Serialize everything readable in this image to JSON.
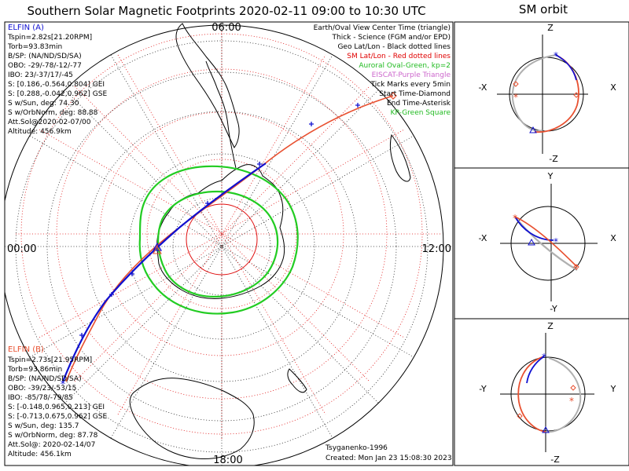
{
  "title": "Southern Solar Magnetic Footprints 2020-02-11 09:00 to 10:30 UTC",
  "orbit_title": "SM orbit",
  "clock_labels": {
    "top": "06:00",
    "left": "00:00",
    "right": "12:00",
    "bottom": "18:00"
  },
  "elfin_a": {
    "name": "ELFIN (A)",
    "color": "#1010d0",
    "lines": [
      "Tspin=2.82s[21.20RPM]",
      "Torb=93.83min",
      "B/SP: (NA/ND/SD/SA)",
      "OBO: -29/-78/-12/-77",
      "IBO: 23/-37/17/-45",
      "S: [0.186,-0.564,0.804] GEI",
      "S: [0.288,-0.042,0.962] GSE",
      "S w/Sun, deg: 74.30",
      "S w/OrbNorm, deg: 88.88",
      "Att.Sol@2020-02-07/00",
      "Altitude: 456.9km"
    ]
  },
  "elfin_b": {
    "name": "ELFIN (B)",
    "color": "#e85030",
    "lines": [
      "Tspin=2.73s[21.95RPM]",
      "Torb=93.86min",
      "B/SP: (NA/ND/SD/SA)",
      "OBO: -39/23/-53/15",
      "IBO: -85/78/-79/85",
      "S: [-0.148,0.965,0.213] GEI",
      "S: [-0.713,0.675,0.962] GSE",
      "S w/Sun, deg: 135.7",
      "S w/OrbNorm, deg: 87.78",
      "Att.Sol@: 2020-02-14/07",
      "Altitude: 456.1km"
    ]
  },
  "legend": [
    {
      "text": "Earth/Oval View Center Time (triangle)",
      "color": "#000000"
    },
    {
      "text": "Thick - Science (FGM and/or EPD)",
      "color": "#000000"
    },
    {
      "text": "Geo Lat/Lon - Black dotted lines",
      "color": "#000000"
    },
    {
      "text": "SM Lat/Lon - Red dotted lines",
      "color": "#e00000"
    },
    {
      "text": "Auroral Oval-Green, kp=2",
      "color": "#22bb22"
    },
    {
      "text": "EISCAT-Purple Triangle",
      "color": "#cc66cc"
    },
    {
      "text": "Tick Marks every 5min",
      "color": "#000000"
    },
    {
      "text": "Start Time-Diamond",
      "color": "#000000"
    },
    {
      "text": "End Time-Asterisk",
      "color": "#000000"
    },
    {
      "text": "KP-Green Square",
      "color": "#22bb22"
    }
  ],
  "credit": "Tsyganenko-1996",
  "created": "Created: Mon Jan 23 15:08:30 2023",
  "panels": [
    {
      "top": "Z",
      "bottom": "-Z",
      "left": "-X",
      "right": "X"
    },
    {
      "top": "Y",
      "bottom": "-Y",
      "left": "-X",
      "right": "X"
    },
    {
      "top": "Z",
      "bottom": "-Z",
      "left": "-Y",
      "right": "Y"
    }
  ],
  "colors": {
    "blue": "#1010d0",
    "red": "#e85030",
    "green": "#22cc22",
    "grid": "#e01010",
    "gray": "#b0b0b0"
  }
}
